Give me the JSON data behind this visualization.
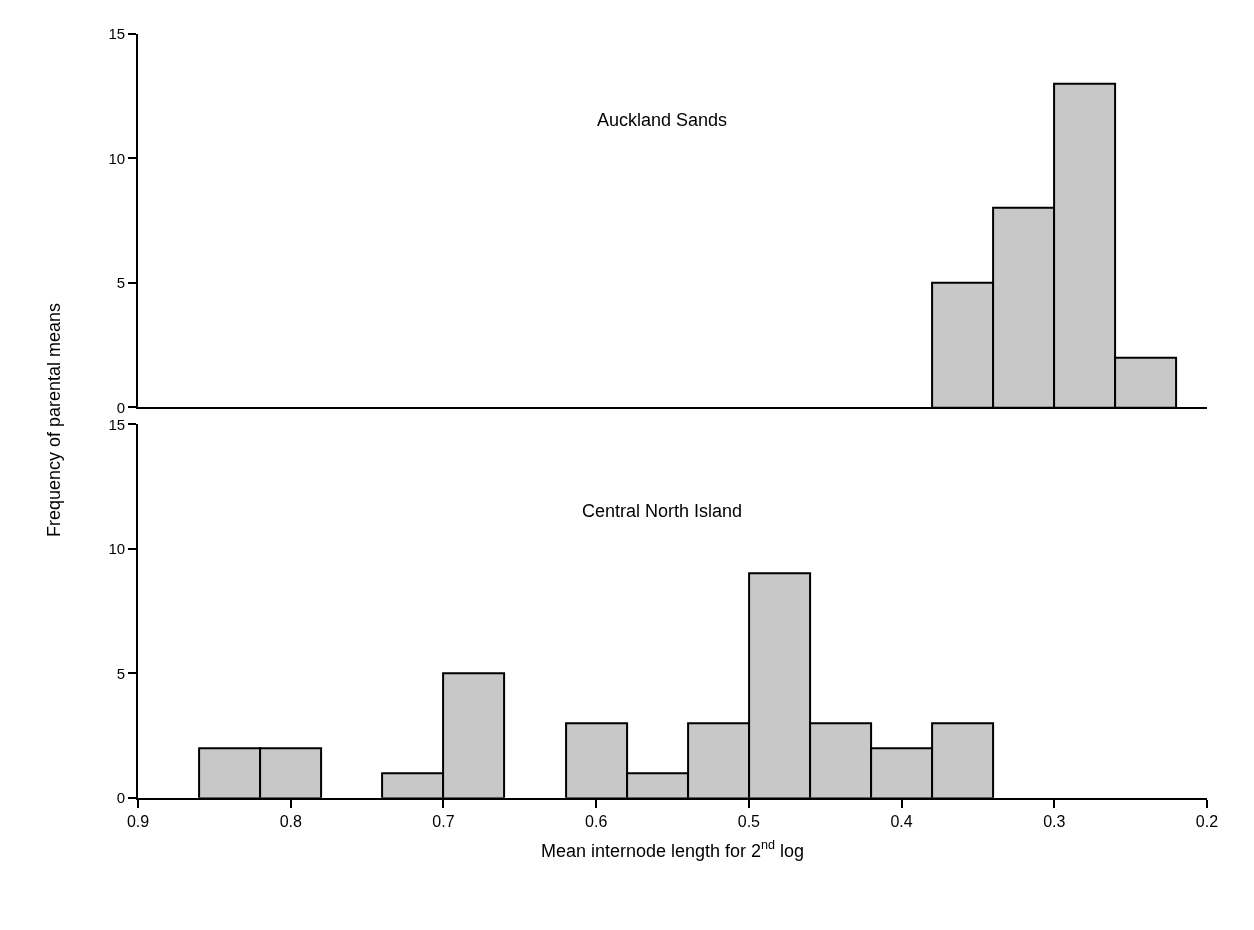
{
  "chart_data": [
    {
      "type": "histogram",
      "title": "Auckland Sands",
      "ylabel": "Frequency of parental means",
      "bins": [
        0.38,
        0.34,
        0.3,
        0.26,
        0.22
      ],
      "values": [
        5,
        8,
        13,
        2
      ],
      "color": "#c8c8c8",
      "xlim": [
        0.9,
        0.2
      ],
      "ylim": [
        0,
        15
      ],
      "yticks": [
        0,
        5,
        10,
        15
      ],
      "tick_labels": "y",
      "grid": false,
      "legend": false
    },
    {
      "type": "histogram",
      "title": "Central North Island",
      "xlabel": "Mean internode length for 2$^{nd}$ log",
      "bins": [
        0.86,
        0.82,
        0.78,
        0.74,
        0.7,
        0.66,
        0.62,
        0.58,
        0.54,
        0.5,
        0.46,
        0.42,
        0.38,
        0.34
      ],
      "values": [
        2,
        2,
        0,
        1,
        5,
        0,
        3,
        1,
        3,
        9,
        3,
        2,
        3
      ],
      "color": "#c8c8c8",
      "xlim": [
        0.9,
        0.2
      ],
      "xticks": [
        {
          "value": 0.9,
          "label": "0.9"
        },
        {
          "value": 0.8,
          "label": "0.8"
        },
        {
          "value": 0.7,
          "label": "0.7"
        },
        {
          "value": 0.6,
          "label": "0.6"
        },
        {
          "value": 0.5,
          "label": "0.5"
        },
        {
          "value": 0.4,
          "label": "0.4"
        },
        {
          "value": 0.3,
          "label": "0.3"
        },
        {
          "value": 0.2,
          "label": "0.2"
        }
      ],
      "ylim": [
        0,
        15
      ],
      "yticks": [
        0,
        5,
        10,
        15
      ],
      "grid": false,
      "legend": false
    }
  ]
}
